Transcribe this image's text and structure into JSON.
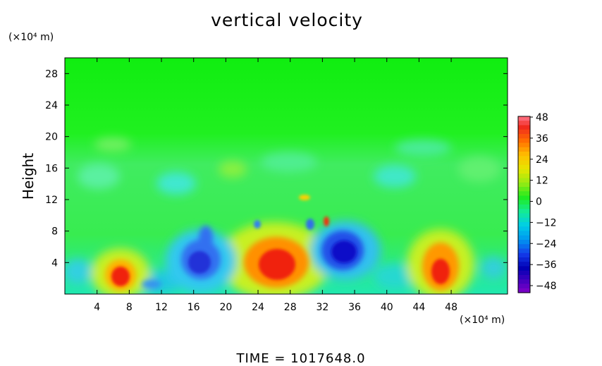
{
  "chart_data": {
    "type": "heatmap",
    "title": "vertical velocity",
    "ylabel": "Height",
    "xunit": "(×10⁴ m)",
    "yunit": "(×10⁴ m)",
    "x_ticks": [
      "4",
      "8",
      "12",
      "16",
      "20",
      "24",
      "28",
      "32",
      "36",
      "40",
      "44",
      "48"
    ],
    "y_ticks": [
      "4",
      "8",
      "12",
      "16",
      "20",
      "24",
      "28"
    ],
    "xlim": [
      0,
      55
    ],
    "ylim": [
      0,
      30
    ],
    "colorbar": {
      "ticks": [
        "48",
        "36",
        "24",
        "12",
        "0",
        "−12",
        "−24",
        "−36",
        "−48"
      ],
      "range": [
        -48,
        48
      ]
    },
    "features": [
      {
        "x": 6.5,
        "y": 2.5,
        "value": 36
      },
      {
        "x": 24.5,
        "y": 4.0,
        "value": 40
      },
      {
        "x": 43,
        "y": 3.0,
        "value": 40
      },
      {
        "x": 16,
        "y": 4.5,
        "value": -30
      },
      {
        "x": 31.5,
        "y": 5.5,
        "value": -38
      },
      {
        "x": 30.5,
        "y": 9.0,
        "value": 30
      },
      {
        "x": 30.5,
        "y": 12.5,
        "value": 18
      }
    ],
    "time_label": "TIME  =  1017648.0"
  }
}
